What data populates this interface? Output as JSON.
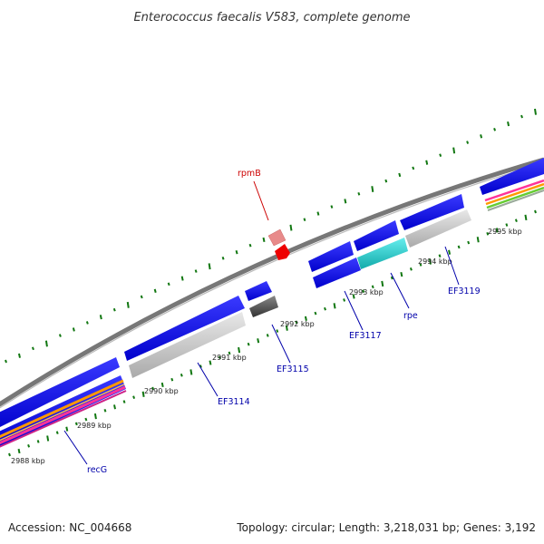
{
  "title": "Enterococcus faecalis V583, complete genome",
  "footer": {
    "accession": "Accession: NC_004668",
    "summary": "Topology: circular; Length: 3,218,031 bp; Genes: 3,192"
  },
  "kbp_labels": [
    "2988 kbp",
    "2989 kbp",
    "2990 kbp",
    "2991 kbp",
    "2992 kbp",
    "2993 kbp",
    "2994 kbp",
    "2995 kbp"
  ],
  "gene_labels": [
    "recG",
    "EF3114",
    "EF3115",
    "rpmB",
    "EF3117",
    "rpe",
    "EF3119"
  ],
  "colors": {
    "cds": "#0000ee",
    "gene_label": "#0000aa",
    "rna": "#ee1111",
    "rna_label": "#cc0000",
    "backbone": "#888888",
    "gc_tick": "#117711",
    "highlight_cyan": "#22cccc"
  }
}
